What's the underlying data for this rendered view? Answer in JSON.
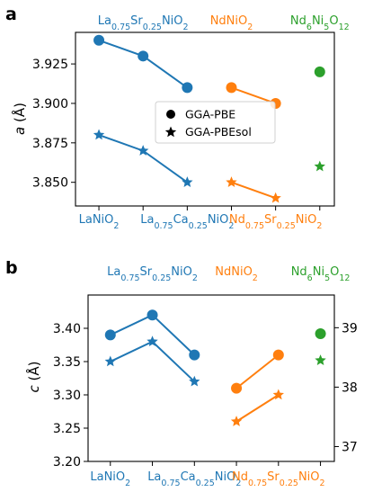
{
  "colors": {
    "blue": "#1f77b4",
    "orange": "#ff7f0e",
    "green": "#2ca02c"
  },
  "legend": {
    "marker_circle_label": "GGA-PBE",
    "marker_star_label": "GGA-PBEsol",
    "placement": "center"
  },
  "chart_data": [
    {
      "type": "line",
      "panel_label": "a",
      "ylabel": "a (Å)",
      "ylabel_parts": {
        "symbol": "a",
        "unit": " (Å)"
      },
      "ylim": [
        3.835,
        3.945
      ],
      "yticks": [
        "3.850",
        "3.875",
        "3.900",
        "3.925"
      ],
      "grid": false,
      "x_positions": [
        0,
        1,
        2,
        3,
        4,
        5
      ],
      "top_labels": [
        {
          "text": "La0.75Sr0.25NiO2",
          "x": 1,
          "color": "blue"
        },
        {
          "text": "NdNiO2",
          "x": 3,
          "color": "orange"
        },
        {
          "text": "Nd6Ni5O12",
          "x": 5,
          "color": "green"
        }
      ],
      "bottom_labels": [
        {
          "text": "LaNiO2",
          "x": 0,
          "color": "blue"
        },
        {
          "text": "La0.75Ca0.25NiO2",
          "x": 2,
          "color": "blue"
        },
        {
          "text": "Nd0.75Sr0.25NiO2",
          "x": 4,
          "color": "orange"
        }
      ],
      "series": [
        {
          "marker": "circle",
          "color": "blue",
          "points": [
            [
              0,
              3.94
            ],
            [
              1,
              3.93
            ],
            [
              2,
              3.91
            ]
          ]
        },
        {
          "marker": "star",
          "color": "blue",
          "points": [
            [
              0,
              3.88
            ],
            [
              1,
              3.87
            ],
            [
              2,
              3.85
            ]
          ]
        },
        {
          "marker": "circle",
          "color": "orange",
          "points": [
            [
              3,
              3.91
            ],
            [
              4,
              3.9
            ]
          ]
        },
        {
          "marker": "star",
          "color": "orange",
          "points": [
            [
              3,
              3.85
            ],
            [
              4,
              3.84
            ]
          ]
        },
        {
          "marker": "circle",
          "color": "green",
          "points": [
            [
              5,
              3.92
            ]
          ]
        },
        {
          "marker": "star",
          "color": "green",
          "points": [
            [
              5,
              3.86
            ]
          ]
        }
      ]
    },
    {
      "type": "line",
      "panel_label": "b",
      "ylabel": "c (Å)",
      "ylabel_parts": {
        "symbol": "c",
        "unit": " (Å)"
      },
      "ylim": [
        3.2,
        3.45
      ],
      "yticks": [
        "3.20",
        "3.25",
        "3.30",
        "3.35",
        "3.40"
      ],
      "y2lim": [
        36.75,
        39.55
      ],
      "y2ticks": [
        "37",
        "38",
        "39"
      ],
      "y2_series_color": "green",
      "grid": false,
      "x_positions": [
        0,
        1,
        2,
        3,
        4,
        5
      ],
      "top_labels": [
        {
          "text": "La0.75Sr0.25NiO2",
          "x": 1,
          "color": "blue"
        },
        {
          "text": "NdNiO2",
          "x": 3,
          "color": "orange"
        },
        {
          "text": "Nd6Ni5O12",
          "x": 5,
          "color": "green"
        }
      ],
      "bottom_labels": [
        {
          "text": "LaNiO2",
          "x": 0,
          "color": "blue"
        },
        {
          "text": "La0.75Ca0.25NiO2",
          "x": 2,
          "color": "blue"
        },
        {
          "text": "Nd0.75Sr0.25NiO2",
          "x": 4,
          "color": "orange"
        }
      ],
      "series": [
        {
          "marker": "circle",
          "color": "blue",
          "points": [
            [
              0,
              3.39
            ],
            [
              1,
              3.42
            ],
            [
              2,
              3.36
            ]
          ]
        },
        {
          "marker": "star",
          "color": "blue",
          "points": [
            [
              0,
              3.35
            ],
            [
              1,
              3.38
            ],
            [
              2,
              3.32
            ]
          ]
        },
        {
          "marker": "circle",
          "color": "orange",
          "points": [
            [
              3,
              3.31
            ],
            [
              4,
              3.36
            ]
          ]
        },
        {
          "marker": "star",
          "color": "orange",
          "points": [
            [
              3,
              3.26
            ],
            [
              4,
              3.3
            ]
          ]
        },
        {
          "marker": "circle",
          "color": "green",
          "axis": "right",
          "points": [
            [
              5,
              38.9
            ]
          ]
        },
        {
          "marker": "star",
          "color": "green",
          "axis": "right",
          "points": [
            [
              5,
              38.45
            ]
          ]
        }
      ]
    }
  ]
}
